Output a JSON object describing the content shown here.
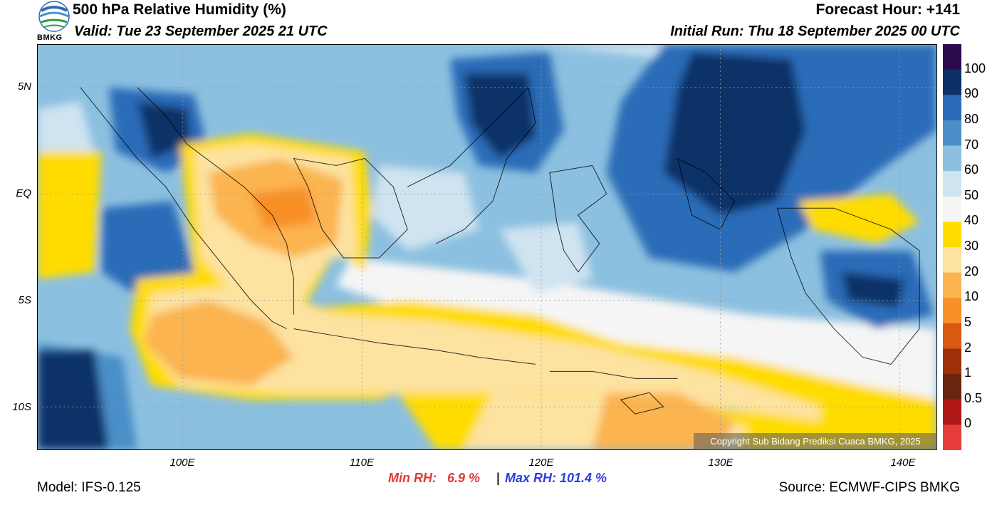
{
  "header": {
    "title": "500 hPa Relative Humidity (%)",
    "valid": "Valid: Tue 23 September 2025 21 UTC",
    "forecast_hour": "Forecast Hour: +141",
    "initial_run": "Initial Run: Thu 18 September 2025 00 UTC"
  },
  "logo": {
    "text": "BMKG"
  },
  "map": {
    "lat_labels": [
      "5N",
      "EQ",
      "5S",
      "10S"
    ],
    "lon_labels": [
      "100E",
      "110E",
      "120E",
      "130E",
      "140E"
    ],
    "copyright": "Copyright Sub Bidang Prediksi Cuaca BMKG, 2025"
  },
  "colorbar": {
    "labels": [
      "100",
      "90",
      "80",
      "70",
      "60",
      "50",
      "40",
      "30",
      "20",
      "10",
      "5",
      "2",
      "1",
      "0.5",
      "0"
    ],
    "colors": [
      "#2d0a4e",
      "#0c3068",
      "#2a6cb8",
      "#4a8fc8",
      "#8cc0e0",
      "#cfe3f0",
      "#f5f5f5",
      "#ffdc00",
      "#fde2a0",
      "#fbb450",
      "#f88f28",
      "#d85a10",
      "#9e3008",
      "#6a2410",
      "#b01818",
      "#e63c3c"
    ]
  },
  "stats": {
    "min_rh": "Min RH:   6.9 %",
    "separator": "|",
    "max_rh": "Max RH: 101.4 %"
  },
  "footer": {
    "model": "Model: IFS-0.125",
    "source": "Source: ECMWF-CIPS BMKG"
  }
}
